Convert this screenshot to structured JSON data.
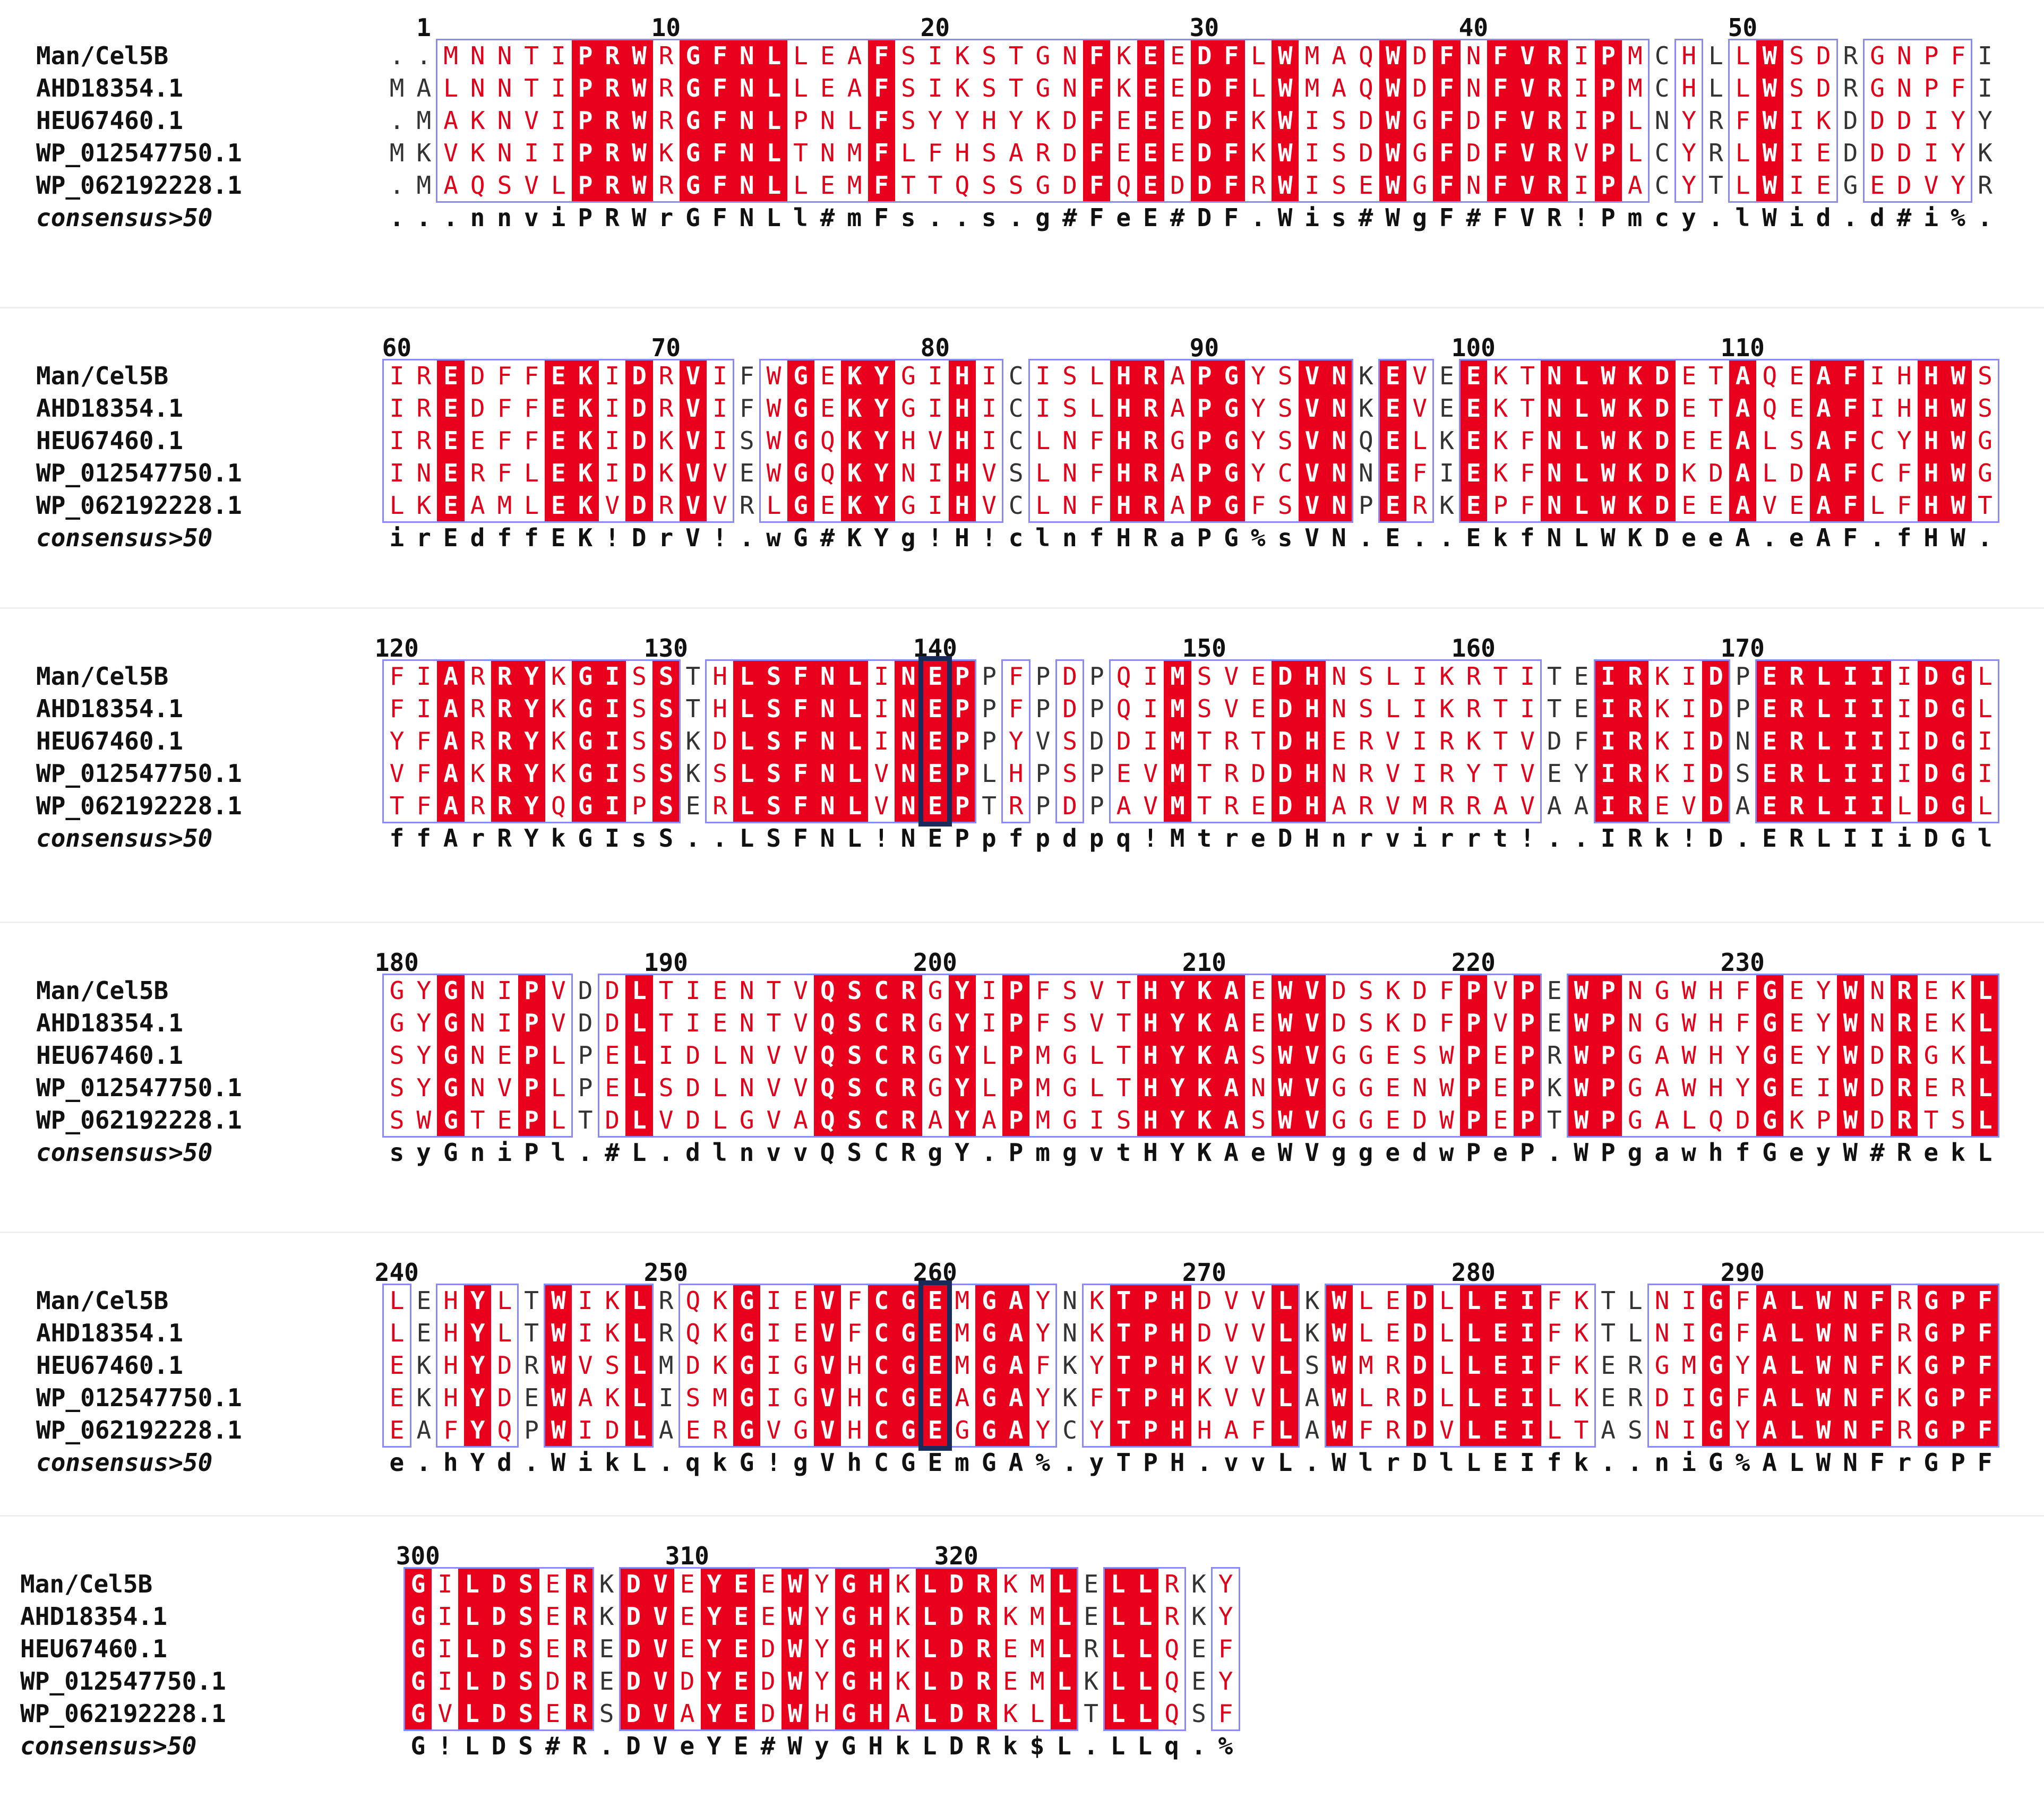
{
  "figure": {
    "type": "multiple_sequence_alignment",
    "colors": {
      "identical_bg": "#e8001c",
      "identical_fg": "#ffffff",
      "similar_fg": "#e0001a",
      "box_border": "#8a8af0",
      "highlight_border": "#1a2a5a"
    },
    "sequence_names": [
      "Man/Cel5B",
      "AHD18354.1",
      "HEU67460.1",
      "WP_012547750.1",
      "WP_062192228.1"
    ],
    "consensus_name": "consensus>50",
    "highlighted_positions": [
      140,
      260
    ],
    "blocks": [
      {
        "start": -1,
        "ticks": [
          1,
          10,
          20,
          30,
          40,
          50
        ],
        "rows": [
          "..MNNTIPRWRGFNLLEAFSIKSTGNFKEEDFLWMAQWDFNFVRIPMCHLLWSDRGNPFI",
          "MALNNTIPRWRGFNLLEAFSIKSTGNFKEEDFLWMAQWDFNFVRIPMCHLLWSDRGNPFI",
          ".MAKNVIPRWRGFNLPNLFSYYHYKDFEEEDFKWISDWGFDFVRIPLNYRFWIKDDDIYY",
          "MKVKNIIPRWKGFNLTNMFLFHSARDFEEEDFKWISDWGFDFVRVPLCYRLWIEDDDIYK",
          ".MAQSVLPRWRGFNLLEMFTTQSSGDFQEDDFRWISEWGFNFVRIPACYTLWIEGEDVYR"
        ],
        "consensus": "...nnviPRWrGFNLl#mFs..s.g#FeE#DF.Wis#WgF#FVR!Pmcy.lWid.d#i%."
      },
      {
        "start": 59,
        "ticks": [
          60,
          70,
          80,
          90,
          100,
          110
        ],
        "rows": [
          "IREDFFEKIDRVIFWGEKYGIHICISLHRAPGYSVNKEVEEKTNLWKDETAQEAFIHHWS",
          "IREDFFEKIDRVIFWGEKYGIHICISLHRAPGYSVNKEVEEKTNLWKDETAQEAFIHHWS",
          "IREEFFEKIDKVISWGQKYHVHICLNFHRGPGYSVNQELKEKFNLWKDEEALSAFCYHWG",
          "INERFLEKIDKVVEWGQKYNIHVSLNFHRAPGYCVNNEFIEKFNLWKDKDALDAFCFHWG",
          "LKEAMLEKVDRVVRLGEKYGIHVCLNFHRAPGFSVNPERKEPFNLWKDEEAVEAFLFHWT"
        ],
        "consensus": "irEdffEK!DrV!.wG#KYg!H!clnfHRaPG%sVN.E..EkfNLWKDeeA.eAF.fHW."
      },
      {
        "start": 119,
        "ticks": [
          120,
          130,
          140,
          150,
          160,
          170
        ],
        "rows": [
          "FIARRYKGISSTHLSFNLINEPPFPDPQIMSVEDHNSLIKRTITEIRKIDPERLIIIDGL",
          "FIARRYKGISSTHLSFNLINEPPFPDPQIMSVEDHNSLIKRTITEIRKIDPERLIIIDGL",
          "YFARRYKGISSKDLSFNLINEPPYVSDDIMTRTDHERVIRKTVDFIRKIDNERLIIIDGI",
          "VFAKRYKGISSKSLSFNLVNEPLHPSPEVMTRDDHNRVIRYTVEYIRKIDSERLIIIDGI",
          "TFARRYQGIPSERLSFNLVNEPTRPDPAVMTREDHARVMRRAVAAIREVDAERLIILDGL"
        ],
        "consensus": "ffArRYkGIsS..LSFNL!NEPpfpdpq!MtreDHnrvirrt!..IRk!D.ERLIIiDGl"
      },
      {
        "start": 179,
        "ticks": [
          180,
          190,
          200,
          210,
          220,
          230
        ],
        "rows": [
          "GYGNIPVDDLTIENTVQSCRGYIPFSVTHYKAEWVDSKDFPVPEWPNGWHFGEYWNREKL",
          "GYGNIPVDDLTIENTVQSCRGYIPFSVTHYKAEWVDSKDFPVPEWPNGWHFGEYWNREKL",
          "SYGNEPLPELIDLNVVQSCRGYLPMGLTHYKASWVGGESWPEPRWPGAWHYGEYWDRGKL",
          "SYGNVPLPELSDLNVVQSCRGYLPMGLTHYKANWVGGENWPEPKWPGAWHYGEIWDRERL",
          "SWGTEPLTDLVDLGVAQSCRAYAPMGISHYKASWVGGEDWPEPTWPGALQDGKPWDRTSL"
        ],
        "consensus": "syGniPl.#L.dlnvvQSCRgY.PmgvtHYKAeWVggedwPeP.WPgawhfGeyW#RekL"
      },
      {
        "start": 239,
        "ticks": [
          240,
          250,
          260,
          270,
          280,
          290
        ],
        "rows": [
          "LEHYLTWIKLRQKGIEVFCGEMGAYNKTPHDVVLKWLEDLLEIFKTLNIGFALWNFRGPF",
          "LEHYLTWIKLRQKGIEVFCGEMGAYNKTPHDVVLKWLEDLLEIFKTLNIGFALWNFRGPF",
          "EKHYDRWVSLMDKGIGVHCGEMGAFKYTPHKVVLSWMRDLLEIFKERGMGYALWNFKGPF",
          "EKHYDEWAKLISMGIGVHCGEAGAYKFTPHKVVLAWLRDLLEILKERDIGFALWNFKGPF",
          "EAFYQPWIDLAERGVGVHCGEGGAYCYTPHHAFLAWFRDVLEILTASNIGYALWNFRGPF"
        ],
        "consensus": "e.hYd.WikL.qkG!gVhCGEmGA%.yTPH.vvL.WlrDlLEIfk..niG%ALWNFrGPF"
      },
      {
        "start": 299,
        "ticks": [
          300,
          310,
          320
        ],
        "rows": [
          "GILDSERKDVEYEEWYGHKLDRKMLELLRKY",
          "GILDSERKDVEYEEWYGHKLDRKMLELLRKY",
          "GILDSEREDVEYEDWYGHKLDREMLRLLQEF",
          "GILDSDREDVDYEDWYGHKLDREMLKLLQEY",
          "GVLDSERSDVAYEDWHGHALDRKLLTLLQSF"
        ],
        "consensus": "G!LDS#R.DVeYE#WyGHkLDRk$L.LLq.%"
      }
    ]
  }
}
